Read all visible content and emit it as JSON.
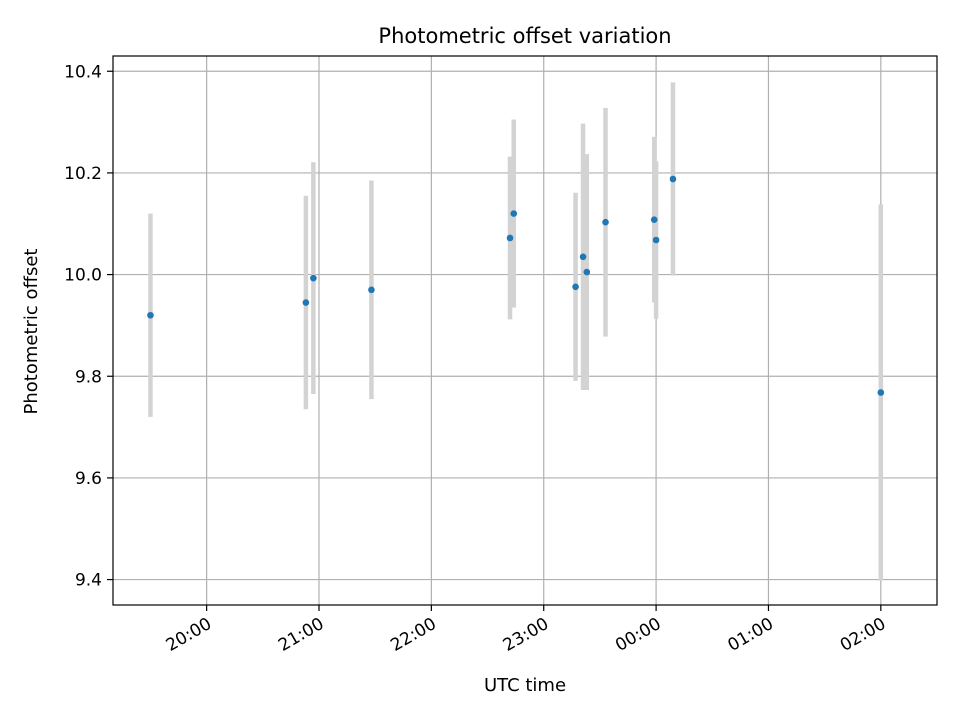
{
  "chart_data": {
    "type": "scatter",
    "title": "Photometric offset variation",
    "xlabel": "UTC time",
    "ylabel": "Photometric offset",
    "x_axis_kind": "time (HH:MM, spanning midnight)",
    "xlim": [
      "19:10",
      "02:30"
    ],
    "ylim": [
      9.35,
      10.43
    ],
    "x_ticks": [
      {
        "time": "20:00",
        "label": "20:00"
      },
      {
        "time": "21:00",
        "label": "21:00"
      },
      {
        "time": "22:00",
        "label": "22:00"
      },
      {
        "time": "23:00",
        "label": "23:00"
      },
      {
        "time": "00:00",
        "label": "00:00"
      },
      {
        "time": "01:00",
        "label": "01:00"
      },
      {
        "time": "02:00",
        "label": "02:00"
      }
    ],
    "y_ticks": [
      9.4,
      9.6,
      9.8,
      10.0,
      10.2,
      10.4
    ],
    "y_tick_labels": [
      "9.4",
      "9.6",
      "9.8",
      "10.0",
      "10.2",
      "10.4"
    ],
    "grid": true,
    "marker_color": "#1f77b4",
    "errorbar_color": "#d3d3d3",
    "points": [
      {
        "time": "19:30",
        "y": 9.92,
        "err": 0.2
      },
      {
        "time": "20:53",
        "y": 9.945,
        "err": 0.21
      },
      {
        "time": "20:57",
        "y": 9.993,
        "err": 0.228
      },
      {
        "time": "21:28",
        "y": 9.97,
        "err": 0.215
      },
      {
        "time": "22:42",
        "y": 10.072,
        "err": 0.16
      },
      {
        "time": "22:44",
        "y": 10.12,
        "err": 0.185
      },
      {
        "time": "23:17",
        "y": 9.976,
        "err": 0.185
      },
      {
        "time": "23:21",
        "y": 10.035,
        "err": 0.262
      },
      {
        "time": "23:23",
        "y": 10.005,
        "err": 0.232
      },
      {
        "time": "23:33",
        "y": 10.103,
        "err": 0.225
      },
      {
        "time": "23:59",
        "y": 10.108,
        "err": 0.163
      },
      {
        "time": "00:00",
        "y": 10.068,
        "err": 0.155
      },
      {
        "time": "00:09",
        "y": 10.188,
        "err": 0.19
      },
      {
        "time": "02:00",
        "y": 9.768,
        "err": 0.37
      }
    ]
  }
}
